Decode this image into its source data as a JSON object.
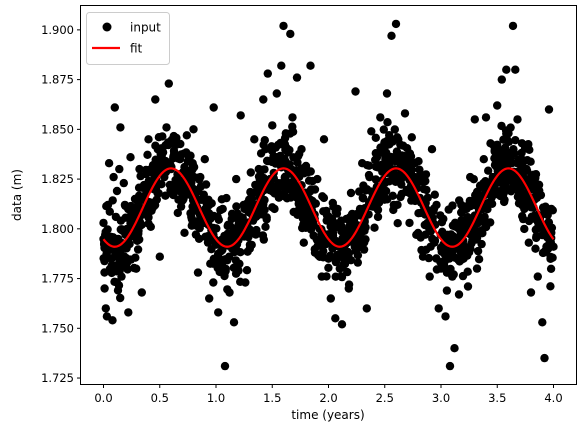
{
  "chart_data": {
    "type": "scatter",
    "xlabel": "time (years)",
    "ylabel": "data (m)",
    "xlim": [
      -0.2,
      4.2
    ],
    "ylim": [
      1.722,
      1.912
    ],
    "xticks": [
      0.0,
      0.5,
      1.0,
      1.5,
      2.0,
      2.5,
      3.0,
      3.5,
      4.0
    ],
    "xtick_labels": [
      "0.0",
      "0.5",
      "1.0",
      "1.5",
      "2.0",
      "2.5",
      "3.0",
      "3.5",
      "4.0"
    ],
    "yticks": [
      1.725,
      1.75,
      1.775,
      1.8,
      1.825,
      1.85,
      1.875,
      1.9
    ],
    "ytick_labels": [
      "1.725",
      "1.750",
      "1.775",
      "1.800",
      "1.825",
      "1.850",
      "1.875",
      "1.900"
    ],
    "grid": false,
    "legend_position": "top-left",
    "series": [
      {
        "name": "input",
        "kind": "scatter",
        "color": "#000000",
        "description_points": "approx. 1500 noisy samples over 0-4 years",
        "points": [
          [
            0.0,
            1.803
          ],
          [
            0.01,
            1.77
          ],
          [
            0.02,
            1.76
          ],
          [
            0.03,
            1.756
          ],
          [
            0.04,
            1.812
          ],
          [
            0.05,
            1.833
          ],
          [
            0.06,
            1.795
          ],
          [
            0.07,
            1.785
          ],
          [
            0.08,
            1.754
          ],
          [
            0.09,
            1.826
          ],
          [
            0.1,
            1.861
          ],
          [
            0.11,
            1.806
          ],
          [
            0.12,
            1.819
          ],
          [
            0.13,
            1.79
          ],
          [
            0.14,
            1.83
          ],
          [
            0.15,
            1.851
          ],
          [
            0.16,
            1.776
          ],
          [
            0.17,
            1.799
          ],
          [
            0.18,
            1.823
          ],
          [
            0.19,
            1.812
          ],
          [
            0.2,
            1.781
          ],
          [
            0.22,
            1.758
          ],
          [
            0.24,
            1.836
          ],
          [
            0.26,
            1.804
          ],
          [
            0.28,
            1.815
          ],
          [
            0.3,
            1.794
          ],
          [
            0.32,
            1.83
          ],
          [
            0.34,
            1.768
          ],
          [
            0.36,
            1.822
          ],
          [
            0.38,
            1.812
          ],
          [
            0.4,
            1.845
          ],
          [
            0.42,
            1.801
          ],
          [
            0.44,
            1.832
          ],
          [
            0.46,
            1.865
          ],
          [
            0.48,
            1.818
          ],
          [
            0.5,
            1.786
          ],
          [
            0.52,
            1.838
          ],
          [
            0.54,
            1.826
          ],
          [
            0.56,
            1.851
          ],
          [
            0.58,
            1.873
          ],
          [
            0.6,
            1.83
          ],
          [
            0.62,
            1.817
          ],
          [
            0.64,
            1.842
          ],
          [
            0.66,
            1.808
          ],
          [
            0.68,
            1.835
          ],
          [
            0.7,
            1.822
          ],
          [
            0.72,
            1.798
          ],
          [
            0.74,
            1.847
          ],
          [
            0.76,
            1.829
          ],
          [
            0.78,
            1.806
          ],
          [
            0.8,
            1.85
          ],
          [
            0.82,
            1.815
          ],
          [
            0.84,
            1.778
          ],
          [
            0.86,
            1.826
          ],
          [
            0.88,
            1.803
          ],
          [
            0.9,
            1.835
          ],
          [
            0.92,
            1.812
          ],
          [
            0.94,
            1.765
          ],
          [
            0.96,
            1.8
          ],
          [
            0.98,
            1.861
          ],
          [
            1.0,
            1.792
          ],
          [
            1.02,
            1.758
          ],
          [
            1.04,
            1.78
          ],
          [
            1.06,
            1.81
          ],
          [
            1.08,
            1.731
          ],
          [
            1.1,
            1.795
          ],
          [
            1.12,
            1.768
          ],
          [
            1.14,
            1.805
          ],
          [
            1.16,
            1.753
          ],
          [
            1.18,
            1.825
          ],
          [
            1.2,
            1.779
          ],
          [
            1.22,
            1.857
          ],
          [
            1.24,
            1.8
          ],
          [
            1.26,
            1.773
          ],
          [
            1.28,
            1.813
          ],
          [
            1.3,
            1.79
          ],
          [
            1.32,
            1.812
          ],
          [
            1.34,
            1.845
          ],
          [
            1.36,
            1.798
          ],
          [
            1.38,
            1.83
          ],
          [
            1.4,
            1.815
          ],
          [
            1.42,
            1.865
          ],
          [
            1.44,
            1.84
          ],
          [
            1.46,
            1.878
          ],
          [
            1.48,
            1.825
          ],
          [
            1.5,
            1.852
          ],
          [
            1.52,
            1.81
          ],
          [
            1.54,
            1.868
          ],
          [
            1.56,
            1.836
          ],
          [
            1.58,
            1.882
          ],
          [
            1.6,
            1.902
          ],
          [
            1.62,
            1.848
          ],
          [
            1.64,
            1.82
          ],
          [
            1.66,
            1.898
          ],
          [
            1.68,
            1.856
          ],
          [
            1.7,
            1.826
          ],
          [
            1.72,
            1.876
          ],
          [
            1.74,
            1.81
          ],
          [
            1.76,
            1.84
          ],
          [
            1.78,
            1.793
          ],
          [
            1.8,
            1.83
          ],
          [
            1.82,
            1.805
          ],
          [
            1.84,
            1.882
          ],
          [
            1.86,
            1.812
          ],
          [
            1.88,
            1.788
          ],
          [
            1.9,
            1.825
          ],
          [
            1.92,
            1.8
          ],
          [
            1.94,
            1.776
          ],
          [
            1.96,
            1.845
          ],
          [
            1.98,
            1.809
          ],
          [
            2.0,
            1.785
          ],
          [
            2.02,
            1.765
          ],
          [
            2.04,
            1.798
          ],
          [
            2.06,
            1.755
          ],
          [
            2.08,
            1.81
          ],
          [
            2.1,
            1.78
          ],
          [
            2.12,
            1.752
          ],
          [
            2.14,
            1.79
          ],
          [
            2.16,
            1.805
          ],
          [
            2.18,
            1.77
          ],
          [
            2.2,
            1.818
          ],
          [
            2.22,
            1.796
          ],
          [
            2.24,
            1.869
          ],
          [
            2.26,
            1.783
          ],
          [
            2.28,
            1.81
          ],
          [
            2.3,
            1.833
          ],
          [
            2.32,
            1.799
          ],
          [
            2.34,
            1.76
          ],
          [
            2.36,
            1.827
          ],
          [
            2.38,
            1.849
          ],
          [
            2.4,
            1.814
          ],
          [
            2.42,
            1.838
          ],
          [
            2.44,
            1.806
          ],
          [
            2.46,
            1.856
          ],
          [
            2.48,
            1.822
          ],
          [
            2.5,
            1.842
          ],
          [
            2.52,
            1.868
          ],
          [
            2.54,
            1.829
          ],
          [
            2.56,
            1.897
          ],
          [
            2.58,
            1.812
          ],
          [
            2.6,
            1.903
          ],
          [
            2.62,
            1.845
          ],
          [
            2.64,
            1.816
          ],
          [
            2.66,
            1.835
          ],
          [
            2.68,
            1.858
          ],
          [
            2.7,
            1.826
          ],
          [
            2.72,
            1.803
          ],
          [
            2.74,
            1.846
          ],
          [
            2.76,
            1.815
          ],
          [
            2.78,
            1.797
          ],
          [
            2.8,
            1.834
          ],
          [
            2.82,
            1.808
          ],
          [
            2.84,
            1.786
          ],
          [
            2.86,
            1.824
          ],
          [
            2.88,
            1.803
          ],
          [
            2.9,
            1.776
          ],
          [
            2.92,
            1.84
          ],
          [
            2.94,
            1.793
          ],
          [
            2.96,
            1.812
          ],
          [
            2.98,
            1.76
          ],
          [
            3.0,
            1.78
          ],
          [
            3.02,
            1.805
          ],
          [
            3.04,
            1.756
          ],
          [
            3.06,
            1.797
          ],
          [
            3.08,
            1.731
          ],
          [
            3.1,
            1.776
          ],
          [
            3.12,
            1.74
          ],
          [
            3.14,
            1.79
          ],
          [
            3.16,
            1.767
          ],
          [
            3.18,
            1.812
          ],
          [
            3.2,
            1.785
          ],
          [
            3.22,
            1.8
          ],
          [
            3.24,
            1.771
          ],
          [
            3.26,
            1.826
          ],
          [
            3.28,
            1.796
          ],
          [
            3.3,
            1.855
          ],
          [
            3.32,
            1.78
          ],
          [
            3.34,
            1.816
          ],
          [
            3.36,
            1.799
          ],
          [
            3.38,
            1.835
          ],
          [
            3.4,
            1.856
          ],
          [
            3.42,
            1.813
          ],
          [
            3.44,
            1.843
          ],
          [
            3.46,
            1.826
          ],
          [
            3.48,
            1.82
          ],
          [
            3.5,
            1.862
          ],
          [
            3.52,
            1.836
          ],
          [
            3.54,
            1.875
          ],
          [
            3.56,
            1.82
          ],
          [
            3.58,
            1.88
          ],
          [
            3.6,
            1.848
          ],
          [
            3.62,
            1.836
          ],
          [
            3.64,
            1.902
          ],
          [
            3.66,
            1.88
          ],
          [
            3.68,
            1.855
          ],
          [
            3.7,
            1.82
          ],
          [
            3.72,
            1.843
          ],
          [
            3.74,
            1.81
          ],
          [
            3.76,
            1.83
          ],
          [
            3.78,
            1.793
          ],
          [
            3.8,
            1.768
          ],
          [
            3.82,
            1.815
          ],
          [
            3.84,
            1.79
          ],
          [
            3.86,
            1.776
          ],
          [
            3.88,
            1.805
          ],
          [
            3.9,
            1.753
          ],
          [
            3.92,
            1.735
          ],
          [
            3.94,
            1.79
          ],
          [
            3.96,
            1.86
          ],
          [
            3.98,
            1.81
          ],
          [
            4.0,
            1.791
          ]
        ]
      },
      {
        "name": "fit",
        "kind": "line",
        "color": "#ff0000",
        "model": {
          "mean": 1.8107,
          "amplitude": 0.0197,
          "period": 1.0,
          "phase": 0.35
        }
      }
    ]
  }
}
